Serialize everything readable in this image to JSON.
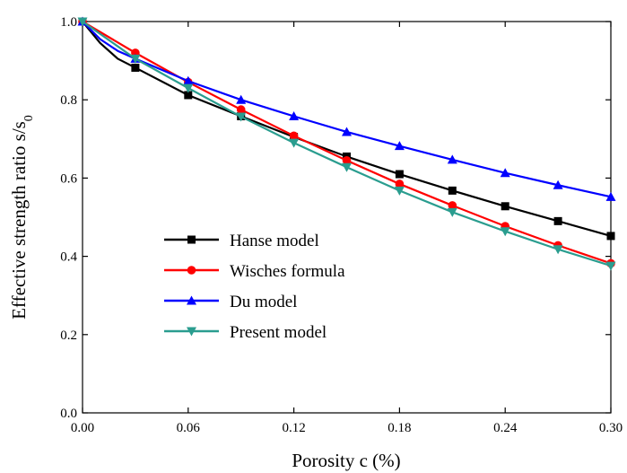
{
  "chart_data": {
    "type": "line",
    "xlabel": "Porosity c (%)",
    "ylabel": "Effective strength ratio s/s",
    "ylabel_subscript": "0",
    "xlim": [
      0.0,
      0.3
    ],
    "ylim": [
      0.0,
      1.0
    ],
    "xticks": [
      "0.00",
      "0.06",
      "0.12",
      "0.18",
      "0.24",
      "0.30"
    ],
    "yticks": [
      "0.0",
      "0.2",
      "0.4",
      "0.6",
      "0.8",
      "1.0"
    ],
    "xtick_values": [
      0.0,
      0.06,
      0.12,
      0.18,
      0.24,
      0.3
    ],
    "ytick_values": [
      0.0,
      0.2,
      0.4,
      0.6,
      0.8,
      1.0
    ],
    "grid": false,
    "legend_position": "lower-left",
    "series": [
      {
        "name": "Hanse model",
        "color": "#000000",
        "marker": "square",
        "x": [
          0.0,
          0.03,
          0.06,
          0.09,
          0.12,
          0.15,
          0.18,
          0.21,
          0.24,
          0.27,
          0.3
        ],
        "y": [
          1.0,
          0.882,
          0.812,
          0.758,
          0.705,
          0.655,
          0.61,
          0.568,
          0.528,
          0.49,
          0.452
        ],
        "line": [
          [
            0.0,
            1.0
          ],
          [
            0.01,
            0.945
          ],
          [
            0.02,
            0.905
          ],
          [
            0.03,
            0.882
          ],
          [
            0.06,
            0.812
          ],
          [
            0.09,
            0.758
          ],
          [
            0.12,
            0.705
          ],
          [
            0.15,
            0.655
          ],
          [
            0.18,
            0.61
          ],
          [
            0.21,
            0.568
          ],
          [
            0.24,
            0.528
          ],
          [
            0.27,
            0.49
          ],
          [
            0.3,
            0.452
          ]
        ]
      },
      {
        "name": "Wisches formula",
        "color": "#ff0000",
        "marker": "circle",
        "x": [
          0.0,
          0.03,
          0.06,
          0.09,
          0.12,
          0.15,
          0.18,
          0.21,
          0.24,
          0.27,
          0.3
        ],
        "y": [
          1.0,
          0.92,
          0.845,
          0.775,
          0.708,
          0.645,
          0.585,
          0.53,
          0.477,
          0.428,
          0.382
        ],
        "line": [
          [
            0.0,
            1.0
          ],
          [
            0.03,
            0.92
          ],
          [
            0.06,
            0.845
          ],
          [
            0.09,
            0.775
          ],
          [
            0.12,
            0.708
          ],
          [
            0.15,
            0.645
          ],
          [
            0.18,
            0.585
          ],
          [
            0.21,
            0.53
          ],
          [
            0.24,
            0.477
          ],
          [
            0.27,
            0.428
          ],
          [
            0.3,
            0.382
          ]
        ]
      },
      {
        "name": "Du model",
        "color": "#0000ff",
        "marker": "triangle-up",
        "x": [
          0.0,
          0.03,
          0.06,
          0.09,
          0.12,
          0.15,
          0.18,
          0.21,
          0.24,
          0.27,
          0.3
        ],
        "y": [
          1.0,
          0.905,
          0.848,
          0.8,
          0.758,
          0.718,
          0.682,
          0.647,
          0.613,
          0.582,
          0.552
        ],
        "line": [
          [
            0.0,
            1.0
          ],
          [
            0.01,
            0.955
          ],
          [
            0.02,
            0.925
          ],
          [
            0.03,
            0.905
          ],
          [
            0.06,
            0.848
          ],
          [
            0.09,
            0.8
          ],
          [
            0.12,
            0.758
          ],
          [
            0.15,
            0.718
          ],
          [
            0.18,
            0.682
          ],
          [
            0.21,
            0.647
          ],
          [
            0.24,
            0.613
          ],
          [
            0.27,
            0.582
          ],
          [
            0.3,
            0.552
          ]
        ]
      },
      {
        "name": "Present model",
        "color": "#2a9d8f",
        "marker": "triangle-down",
        "x": [
          0.0,
          0.03,
          0.06,
          0.09,
          0.12,
          0.15,
          0.18,
          0.21,
          0.24,
          0.27,
          0.3
        ],
        "y": [
          1.0,
          0.905,
          0.83,
          0.757,
          0.69,
          0.628,
          0.568,
          0.513,
          0.464,
          0.418,
          0.376
        ],
        "line": [
          [
            0.0,
            1.0
          ],
          [
            0.03,
            0.905
          ],
          [
            0.06,
            0.83
          ],
          [
            0.09,
            0.757
          ],
          [
            0.12,
            0.69
          ],
          [
            0.15,
            0.628
          ],
          [
            0.18,
            0.568
          ],
          [
            0.21,
            0.513
          ],
          [
            0.24,
            0.464
          ],
          [
            0.27,
            0.418
          ],
          [
            0.3,
            0.376
          ]
        ]
      }
    ]
  }
}
